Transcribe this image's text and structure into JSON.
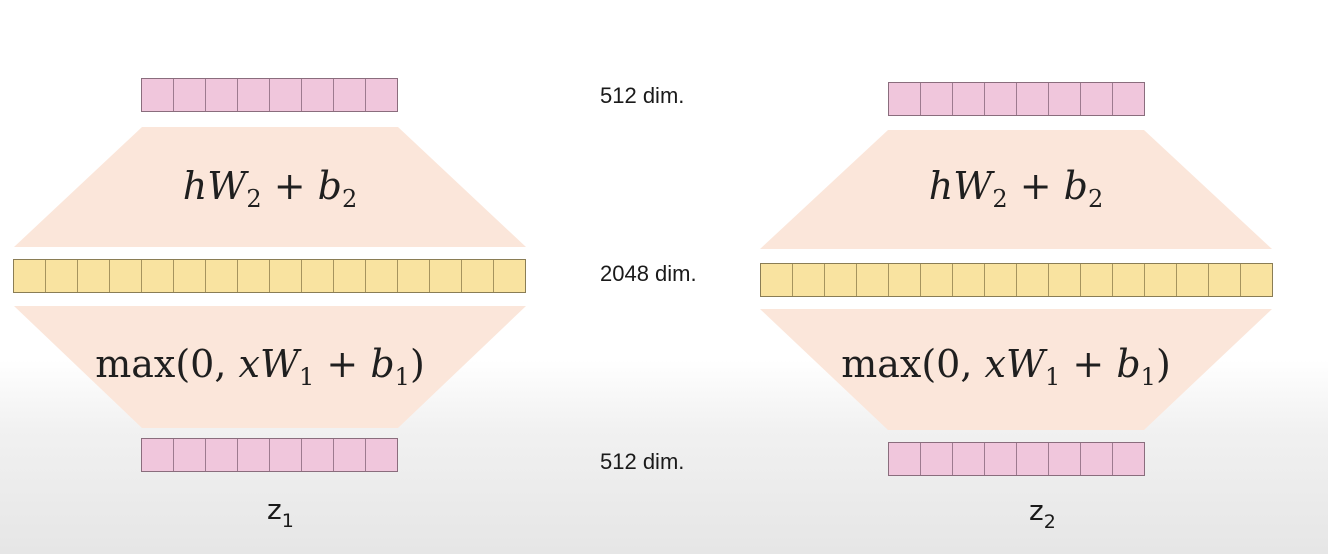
{
  "labels": {
    "top_dim": "512 dim.",
    "middle_dim": "2048 dim.",
    "bottom_dim": "512 dim."
  },
  "blocks": [
    {
      "output_cells": 8,
      "hidden_cells": 16,
      "input_cells": 8,
      "upper_formula": {
        "var_h": "h",
        "var_W": "W",
        "sub_W": "2",
        "op": "+",
        "var_b": "b",
        "sub_b": "2"
      },
      "lower_formula": {
        "fn": "max",
        "open": "(",
        "zero": "0,",
        "var_x": "x",
        "var_W": "W",
        "sub_W": "1",
        "op": "+",
        "var_b": "b",
        "sub_b": "1",
        "close": ")"
      },
      "label": {
        "base": "z",
        "sub": "1"
      }
    },
    {
      "output_cells": 8,
      "hidden_cells": 16,
      "input_cells": 8,
      "upper_formula": {
        "var_h": "h",
        "var_W": "W",
        "sub_W": "2",
        "op": "+",
        "var_b": "b",
        "sub_b": "2"
      },
      "lower_formula": {
        "fn": "max",
        "open": "(",
        "zero": "0,",
        "var_x": "x",
        "var_W": "W",
        "sub_W": "1",
        "op": "+",
        "var_b": "b",
        "sub_b": "1",
        "close": ")"
      },
      "label": {
        "base": "z",
        "sub": "2"
      }
    }
  ],
  "colors": {
    "small_vector": "#f0c6dc",
    "large_vector": "#f9e3a0",
    "layer_band": "#fbe6da"
  }
}
